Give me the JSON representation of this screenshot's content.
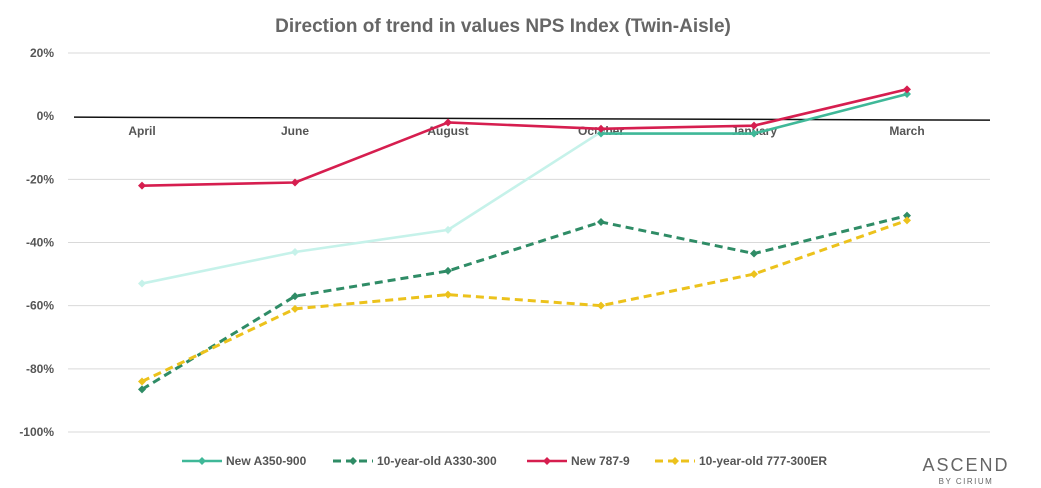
{
  "chart_data": {
    "type": "line",
    "title": "Direction of trend in values NPS Index (Twin-Aisle)",
    "categories": [
      "April",
      "June",
      "August",
      "October",
      "January",
      "March"
    ],
    "yticks": [
      "20%",
      "0%",
      "-20%",
      "-40%",
      "-60%",
      "-80%",
      "-100%"
    ],
    "ylim": [
      -100,
      20
    ],
    "grid": true,
    "legend_position": "bottom",
    "series": [
      {
        "name": "",
        "color": "#c6f2ea",
        "dashed": false,
        "values": [
          -53,
          -43,
          -36,
          -5,
          null,
          null
        ]
      },
      {
        "name": "New A350-900",
        "color": "#3fb898",
        "dashed": false,
        "values": [
          null,
          null,
          null,
          -5.5,
          -5.5,
          7
        ]
      },
      {
        "name": "10-year-old A330-300",
        "color": "#2f8c66",
        "dashed": true,
        "values": [
          -86.5,
          -57,
          -49,
          -33.5,
          -43.5,
          -31.5
        ]
      },
      {
        "name": "New 787-9",
        "color": "#d61e4f",
        "dashed": false,
        "values": [
          -22,
          -21,
          -2,
          -4,
          -3,
          8.5
        ]
      },
      {
        "name": "10-year-old 777-300ER",
        "color": "#ecc21c",
        "dashed": true,
        "values": [
          -84,
          -61,
          -56.5,
          -60,
          -50,
          -33
        ]
      }
    ],
    "legend": [
      {
        "name": "New A350-900",
        "color": "#3fb898",
        "dashed": false
      },
      {
        "name": "10-year-old A330-300",
        "color": "#2f8c66",
        "dashed": true
      },
      {
        "name": "New 787-9",
        "color": "#d61e4f",
        "dashed": false
      },
      {
        "name": "10-year-old 777-300ER",
        "color": "#ecc21c",
        "dashed": true
      }
    ]
  },
  "logo": {
    "main": "ASCEND",
    "sub": "BY CIRIUM"
  }
}
